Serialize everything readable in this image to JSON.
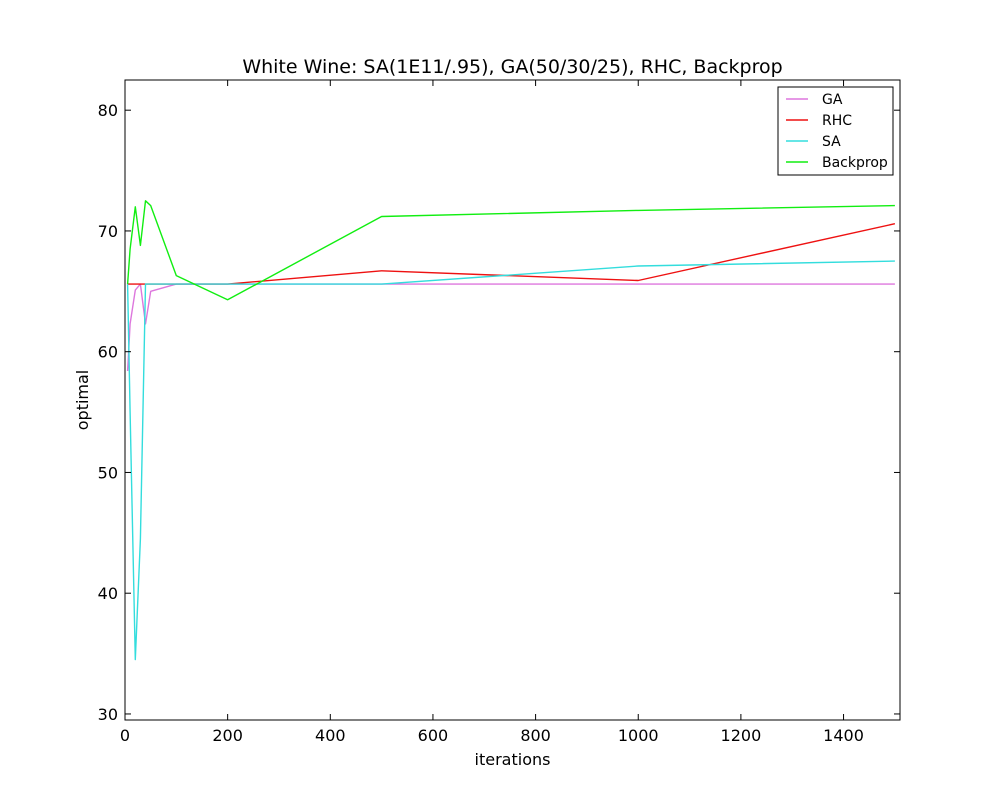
{
  "chart_data": {
    "type": "line",
    "title": "White Wine: SA(1E11/.95), GA(50/30/25), RHC, Backprop",
    "xlabel": "iterations",
    "ylabel": "optimal",
    "xlim": [
      0,
      1510
    ],
    "ylim": [
      29.5,
      82.5
    ],
    "xticks": [
      0,
      200,
      400,
      600,
      800,
      1000,
      1200,
      1400
    ],
    "yticks": [
      30,
      40,
      50,
      60,
      70,
      80
    ],
    "grid": false,
    "legend_position": "top-right",
    "series": [
      {
        "name": "GA",
        "color": "#dd77dd",
        "points": [
          [
            5,
            58.4
          ],
          [
            10,
            62.3
          ],
          [
            20,
            65.1
          ],
          [
            30,
            65.6
          ],
          [
            40,
            62.3
          ],
          [
            50,
            65.0
          ],
          [
            100,
            65.6
          ],
          [
            200,
            65.6
          ],
          [
            500,
            65.6
          ],
          [
            1000,
            65.6
          ],
          [
            1500,
            65.6
          ]
        ]
      },
      {
        "name": "RHC",
        "color": "#ee1111",
        "points": [
          [
            5,
            65.6
          ],
          [
            10,
            65.6
          ],
          [
            20,
            65.6
          ],
          [
            30,
            65.6
          ],
          [
            40,
            65.6
          ],
          [
            50,
            65.6
          ],
          [
            100,
            65.6
          ],
          [
            200,
            65.6
          ],
          [
            500,
            66.7
          ],
          [
            1000,
            65.9
          ],
          [
            1500,
            70.6
          ]
        ]
      },
      {
        "name": "SA",
        "color": "#33dddd",
        "points": [
          [
            5,
            65.6
          ],
          [
            10,
            55.0
          ],
          [
            20,
            34.5
          ],
          [
            30,
            44.5
          ],
          [
            40,
            65.6
          ],
          [
            50,
            65.6
          ],
          [
            100,
            65.6
          ],
          [
            200,
            65.6
          ],
          [
            500,
            65.6
          ],
          [
            1000,
            67.1
          ],
          [
            1500,
            67.5
          ]
        ]
      },
      {
        "name": "Backprop",
        "color": "#11ee11",
        "points": [
          [
            5,
            65.6
          ],
          [
            10,
            68.5
          ],
          [
            20,
            72.0
          ],
          [
            30,
            68.8
          ],
          [
            40,
            72.5
          ],
          [
            50,
            72.1
          ],
          [
            100,
            66.3
          ],
          [
            200,
            64.3
          ],
          [
            500,
            71.2
          ],
          [
            1000,
            71.7
          ],
          [
            1500,
            72.1
          ]
        ]
      }
    ]
  }
}
